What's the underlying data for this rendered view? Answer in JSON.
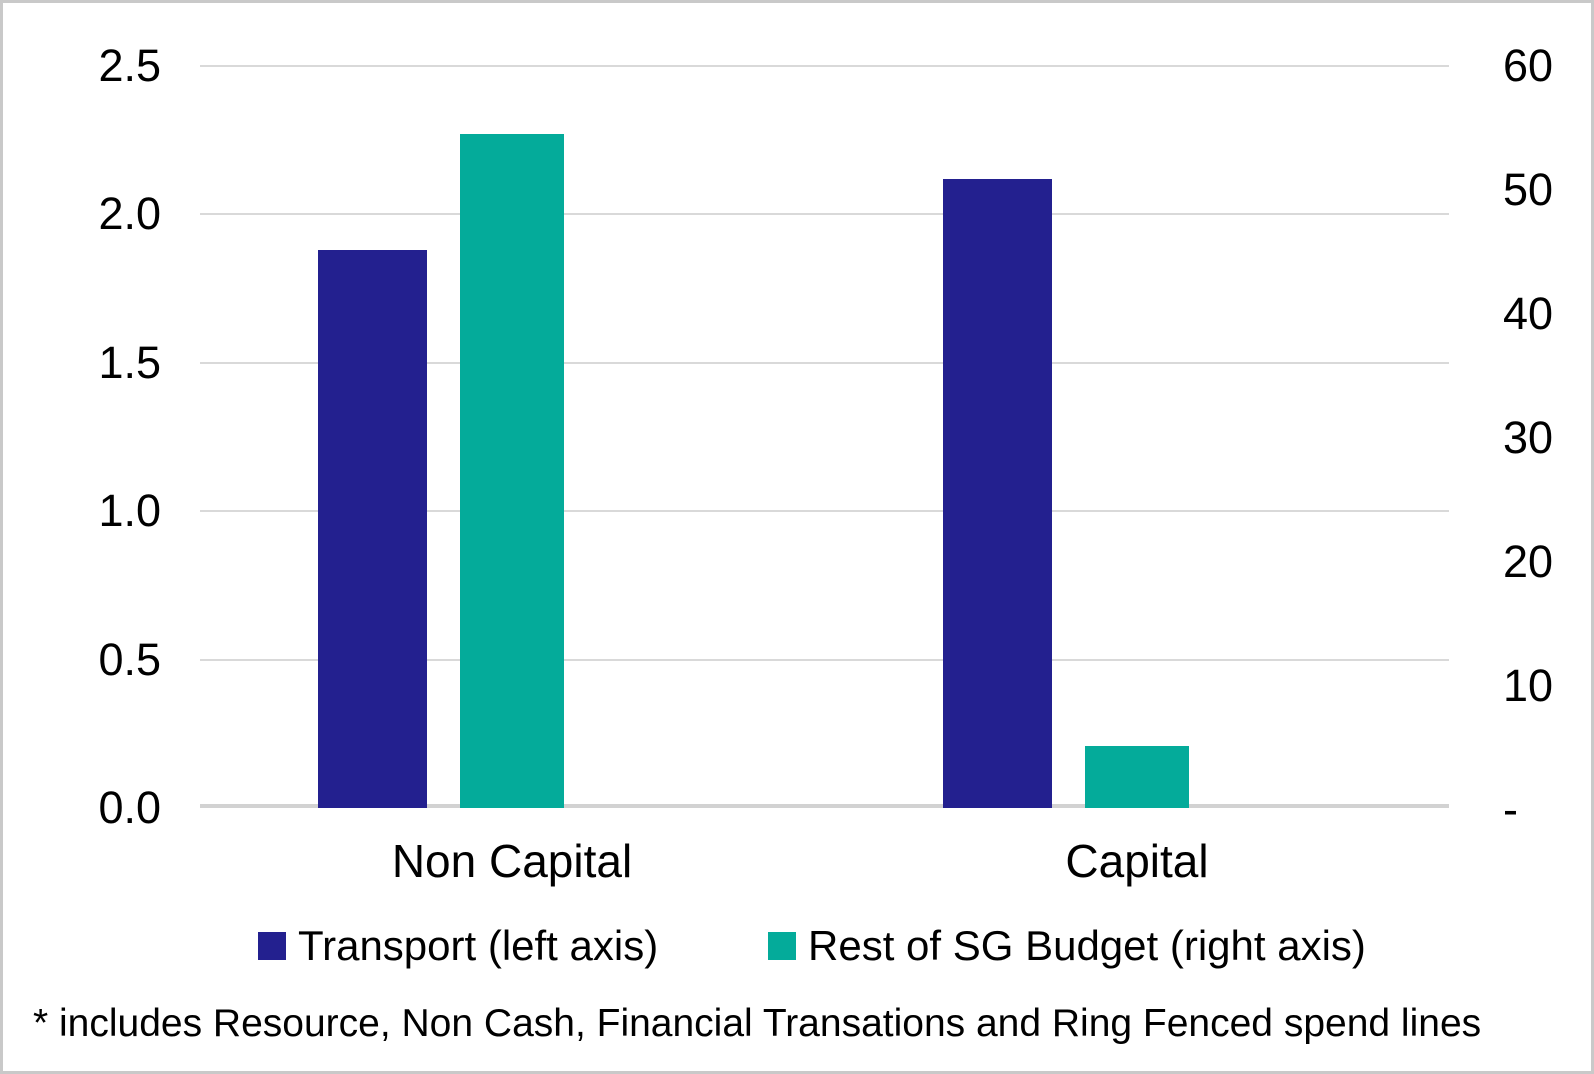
{
  "chart_data": {
    "type": "bar",
    "title": "",
    "categories": [
      "Non Capital",
      "Capital"
    ],
    "series": [
      {
        "name": "Transport (left axis)",
        "axis": "left",
        "color": "#23208F",
        "values": [
          1.88,
          2.12
        ]
      },
      {
        "name": "Rest of SG Budget (right axis)",
        "axis": "right",
        "color": "#04AB9A",
        "values": [
          54.5,
          5
        ]
      }
    ],
    "left_axis": {
      "min": 0,
      "max": 2.5,
      "ticks": [
        "2.5",
        "2.0",
        "1.5",
        "1.0",
        "0.5",
        "0.0"
      ]
    },
    "right_axis": {
      "min": 0,
      "max": 60,
      "ticks": [
        "60",
        "50",
        "40",
        "30",
        "20",
        "10",
        "-"
      ]
    },
    "grid": true,
    "gridline_color": "#d9d9d9",
    "legend_position": "bottom"
  },
  "legend": {
    "items": [
      {
        "label": "Transport (left axis)",
        "color": "#23208F"
      },
      {
        "label": "Rest of SG Budget (right axis)",
        "color": "#04AB9A"
      }
    ]
  },
  "footnote": "* includes Resource, Non Cash, Financial Transations and Ring Fenced spend lines"
}
